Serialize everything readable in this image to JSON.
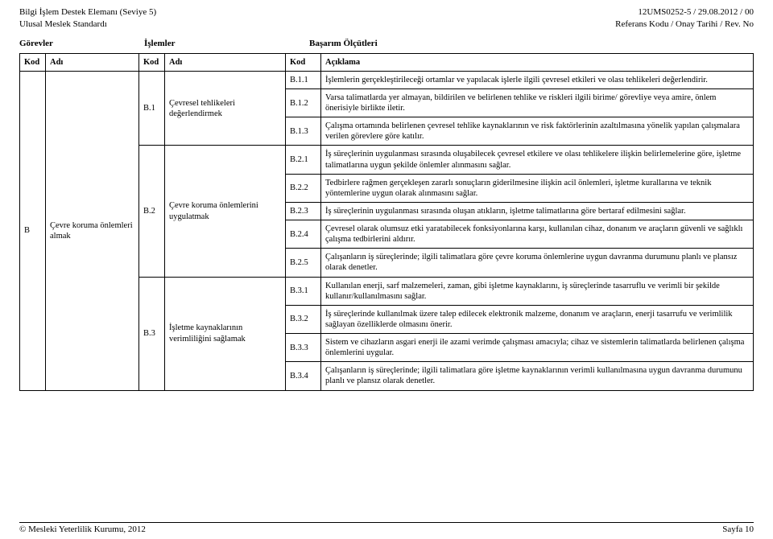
{
  "header": {
    "left_line1": "Bilgi İşlem Destek Elemanı (Seviye 5)",
    "left_line2": "Ulusal Meslek Standardı",
    "right_line1": "12UMS0252-5 / 29.08.2012 / 00",
    "right_line2": "Referans Kodu / Onay Tarihi / Rev. No"
  },
  "section_headers": {
    "gorevler": "Görevler",
    "islemler": "İşlemler",
    "basarim": "Başarım Ölçütleri"
  },
  "table_headers": {
    "kod1": "Kod",
    "adi1": "Adı",
    "kod2": "Kod",
    "adi2": "Adı",
    "kod3": "Kod",
    "aciklama": "Açıklama"
  },
  "gorev": {
    "kod": "B",
    "adi": "Çevre koruma önlemleri almak"
  },
  "islemler": [
    {
      "kod": "B.1",
      "adi": "Çevresel tehlikeleri değerlendirmek"
    },
    {
      "kod": "B.2",
      "adi": "Çevre koruma önlemlerini uygulatmak"
    },
    {
      "kod": "B.3",
      "adi": "İşletme kaynaklarının verimliliğini sağlamak"
    }
  ],
  "rows": [
    {
      "kod": "B.1.1",
      "text": "İşlemlerin gerçekleştirileceği ortamlar ve yapılacak işlerle ilgili çevresel etkileri ve olası tehlikeleri değerlendirir."
    },
    {
      "kod": "B.1.2",
      "text": "Varsa talimatlarda yer almayan, bildirilen ve belirlenen tehlike ve riskleri ilgili birime/ görevliye veya amire, önlem önerisiyle birlikte iletir."
    },
    {
      "kod": "B.1.3",
      "text": "Çalışma ortamında belirlenen çevresel tehlike kaynaklarının ve risk faktörlerinin azaltılmasına yönelik yapılan çalışmalara verilen görevlere göre katılır."
    },
    {
      "kod": "B.2.1",
      "text": "İş süreçlerinin uygulanması sırasında oluşabilecek çevresel etkilere ve olası tehlikelere ilişkin belirlemelerine göre, işletme talimatlarına uygun şekilde önlemler alınmasını sağlar."
    },
    {
      "kod": "B.2.2",
      "text": "Tedbirlere rağmen gerçekleşen zararlı sonuçların giderilmesine ilişkin acil önlemleri, işletme kurallarına ve teknik yöntemlerine uygun olarak alınmasını sağlar."
    },
    {
      "kod": "B.2.3",
      "text": "İş süreçlerinin uygulanması sırasında oluşan atıkların, işletme talimatlarına göre bertaraf edilmesini sağlar."
    },
    {
      "kod": "B.2.4",
      "text": "Çevresel olarak olumsuz etki yaratabilecek fonksiyonlarına karşı, kullanılan cihaz, donanım ve araçların güvenli ve sağlıklı çalışma tedbirlerini aldırır."
    },
    {
      "kod": "B.2.5",
      "text": "Çalışanların iş süreçlerinde; ilgili talimatlara göre çevre koruma önlemlerine uygun davranma durumunu planlı ve plansız olarak denetler."
    },
    {
      "kod": "B.3.1",
      "text": "Kullanılan enerji, sarf malzemeleri, zaman, gibi işletme kaynaklarını, iş süreçlerinde tasarruflu ve verimli bir şekilde kullanır/kullanılmasını sağlar."
    },
    {
      "kod": "B.3.2",
      "text": "İş süreçlerinde kullanılmak üzere talep edilecek elektronik malzeme, donanım ve araçların, enerji tasarrufu ve verimlilik sağlayan özelliklerde olmasını önerir."
    },
    {
      "kod": "B.3.3",
      "text": "Sistem ve cihazların asgari enerji ile azami verimde çalışması amacıyla; cihaz ve sistemlerin talimatlarda belirlenen çalışma önlemlerini uygular."
    },
    {
      "kod": "B.3.4",
      "text": "Çalışanların iş süreçlerinde; ilgili talimatlara göre işletme kaynaklarının verimli kullanılmasına uygun davranma durumunu planlı ve plansız olarak denetler."
    }
  ],
  "footer": {
    "left": "© Mesleki Yeterlilik Kurumu, 2012",
    "right": "Sayfa 10"
  }
}
